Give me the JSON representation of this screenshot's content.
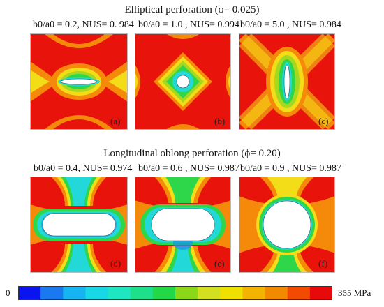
{
  "sections": {
    "elliptical_title": "Elliptical perforation (ϕ= 0.025)",
    "oblong_title": "Longitudinal oblong perforation (ϕ= 0.20)"
  },
  "panels": [
    {
      "caption": "b0/a0 = 0.2, NUS= 0. 984",
      "tag": "(a)"
    },
    {
      "caption": "b0/a0 = 1.0 , NUS= 0.994",
      "tag": "(b)"
    },
    {
      "caption": "b0/a0 = 5.0 , NUS= 0.984",
      "tag": "(c)"
    },
    {
      "caption": "b0/a0 = 0.4, NUS= 0.974",
      "tag": "(d)"
    },
    {
      "caption": "b0/a0 = 0.6 , NUS= 0.987",
      "tag": "(e)"
    },
    {
      "caption": "b0/a0 = 0.9 , NUS= 0.987",
      "tag": "(f)"
    }
  ],
  "colorbar": {
    "min_label": "0",
    "max_label": "355 MPa",
    "colors": [
      "#0a14f0",
      "#1a78f0",
      "#16b4f0",
      "#18d8e6",
      "#1ee6c0",
      "#1ee08a",
      "#22d846",
      "#8ad818",
      "#d2e020",
      "#f0e000",
      "#f2b400",
      "#f28a00",
      "#f24a00",
      "#e80a0a"
    ]
  },
  "palette": {
    "red": "#e8140c",
    "orange": "#f58a0a",
    "yellow": "#f3dc18",
    "lime": "#a6d820",
    "green": "#2ed64a",
    "cyan": "#22d8d8",
    "blue": "#1a8ef0"
  }
}
